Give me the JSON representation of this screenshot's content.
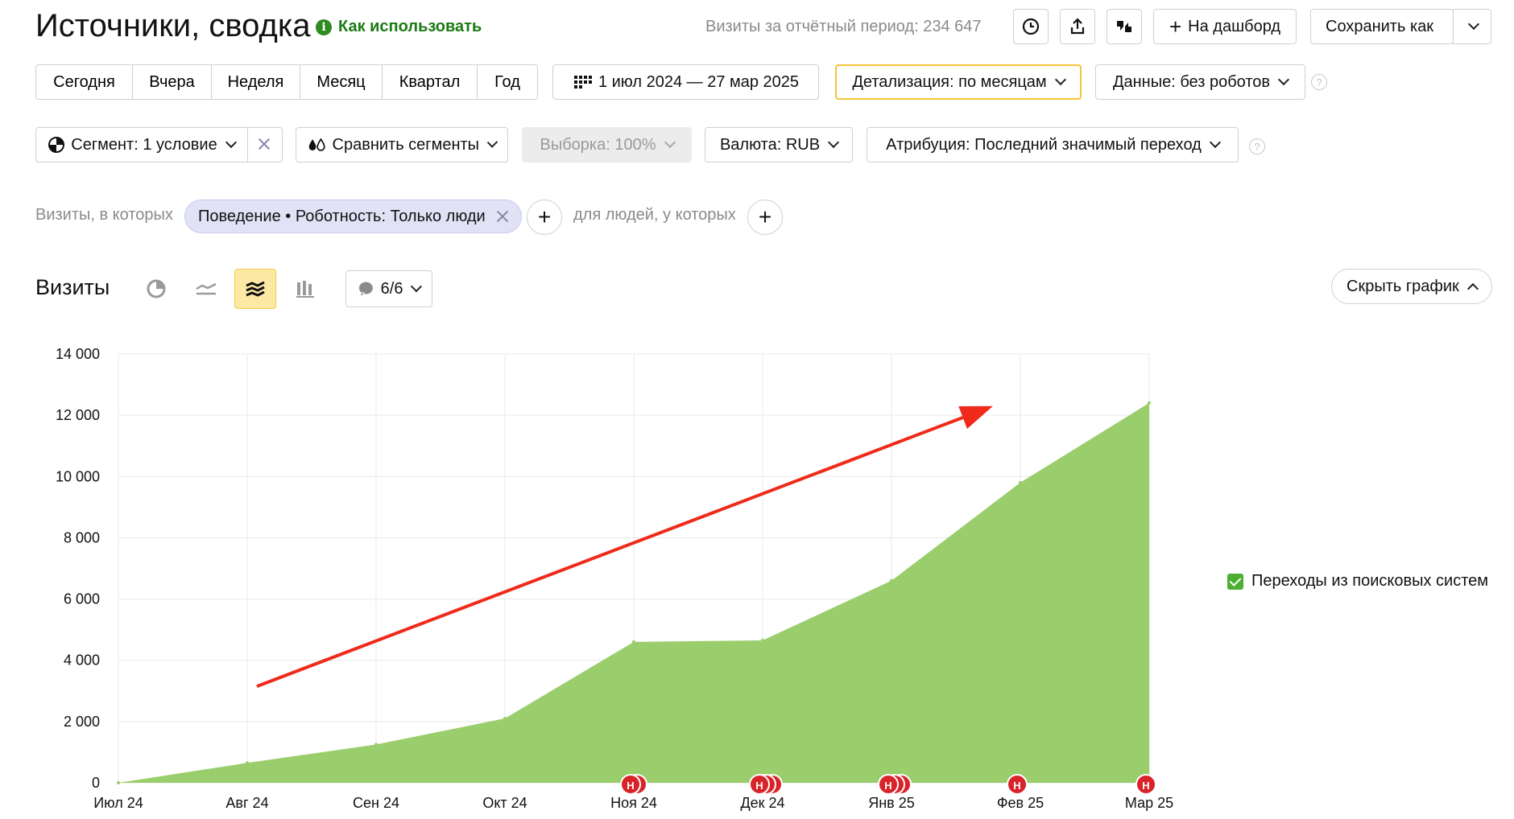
{
  "header": {
    "title": "Источники, сводка",
    "how_to_use": "Как использовать",
    "visits_total": "Визиты за отчётный период: 234 647",
    "add_dashboard": "На дашборд",
    "save_as": "Сохранить как"
  },
  "periods": [
    "Сегодня",
    "Вчера",
    "Неделя",
    "Месяц",
    "Квартал",
    "Год"
  ],
  "date_range": "1 июл 2024 — 27 мар 2025",
  "detail": "Детализация: по месяцам",
  "data_filter": "Данные: без роботов",
  "segment": "Сегмент: 1 условие",
  "compare": "Сравнить сегменты",
  "sample": "Выборка: 100%",
  "currency": "Валюта: RUB",
  "attribution": "Атрибуция: Последний значимый переход",
  "filters": {
    "prefix": "Визиты, в которых",
    "chip": "Поведение • Роботность: Только люди",
    "people": "для людей, у которых"
  },
  "chart_header": {
    "title": "Визиты",
    "notes": "6/6",
    "hide": "Скрыть график"
  },
  "annotation_marker": "Н",
  "colors": {
    "area": "#9acd6b",
    "accent_yellow": "#fde9a3",
    "arrow": "#f02a1a",
    "marker": "#d8232a",
    "link_green": "#1b7a14"
  },
  "chart_data": {
    "type": "area",
    "categories": [
      "Июл 24",
      "Авг 24",
      "Сен 24",
      "Окт 24",
      "Ноя 24",
      "Дек 24",
      "Янв 25",
      "Фев 25",
      "Мар 25"
    ],
    "series": [
      {
        "name": "Переходы из поисковых систем",
        "values": [
          0,
          650,
          1250,
          2100,
          4600,
          4650,
          6600,
          9800,
          12400
        ]
      }
    ],
    "ylim": [
      0,
      14000
    ],
    "yticks": [
      0,
      2000,
      4000,
      6000,
      8000,
      10000,
      12000,
      14000
    ],
    "ytick_labels": [
      "0",
      "2 000",
      "4 000",
      "6 000",
      "8 000",
      "10 000",
      "12 000",
      "14 000"
    ],
    "grid": true,
    "legend": "right",
    "notes_on_months": {
      "Ноя 24": 2,
      "Дек 24": 3,
      "Янв 25": 3,
      "Фев 25": 1,
      "Мар 25": 1
    },
    "trend_arrow": {
      "from": [
        "Авг 24",
        3150
      ],
      "to": [
        "Фев 25",
        12300
      ]
    }
  }
}
